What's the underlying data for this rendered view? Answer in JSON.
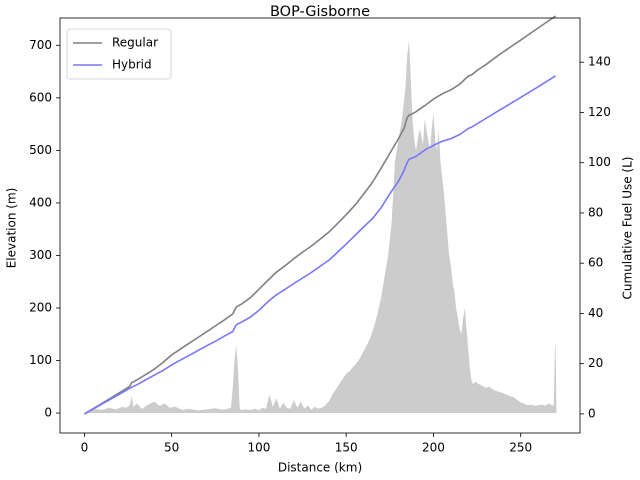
{
  "chart_data": {
    "type": "line",
    "title": "BOP-Gisborne",
    "xlabel": "Distance (km)",
    "ylabel_left": "Elevation (m)",
    "ylabel_right": "Cumulative Fuel Use (L)",
    "xlim": [
      -14,
      284
    ],
    "ylim_left": [
      -38,
      752
    ],
    "ylim_right": [
      -7.6,
      157.6
    ],
    "x_ticks": [
      0,
      50,
      100,
      150,
      200,
      250
    ],
    "y_ticks_left": [
      0,
      100,
      200,
      300,
      400,
      500,
      600,
      700
    ],
    "y_ticks_right": [
      0,
      20,
      40,
      60,
      80,
      100,
      120,
      140
    ],
    "legend_position": "upper-left",
    "elevation_color": "#cccccc",
    "elevation_profile": {
      "x": [
        0,
        3,
        6,
        10,
        14,
        18,
        22,
        24,
        26,
        27,
        28,
        30,
        33,
        36,
        40,
        43,
        46,
        49,
        52,
        56,
        60,
        65,
        70,
        75,
        80,
        84,
        85,
        86,
        87,
        88,
        89,
        90,
        92,
        95,
        98,
        100,
        102,
        104,
        106,
        108,
        110,
        112,
        114,
        116,
        118,
        120,
        122,
        124,
        126,
        128,
        130,
        132,
        134,
        136,
        138,
        140,
        142,
        144,
        146,
        148,
        150,
        152,
        154,
        156,
        158,
        160,
        162,
        164,
        166,
        168,
        170,
        172,
        174,
        176,
        177,
        178,
        180,
        182,
        184,
        185,
        186,
        187,
        188,
        189,
        190,
        191,
        192,
        193,
        194,
        195,
        196,
        197,
        198,
        199,
        200,
        201,
        202,
        203,
        204,
        205,
        206,
        207,
        208,
        209,
        210,
        211,
        212,
        213,
        214,
        215,
        216,
        217,
        218,
        219,
        220,
        221,
        222,
        223,
        224,
        226,
        228,
        230,
        232,
        234,
        236,
        238,
        240,
        242,
        244,
        246,
        248,
        250,
        252,
        254,
        256,
        258,
        260,
        262,
        264,
        266,
        268,
        269,
        269.6,
        270,
        270.5
      ],
      "y": [
        0,
        4,
        8,
        6,
        10,
        7,
        12,
        10,
        15,
        32,
        12,
        18,
        8,
        15,
        22,
        14,
        18,
        10,
        12,
        6,
        8,
        5,
        7,
        9,
        6,
        10,
        50,
        100,
        130,
        80,
        8,
        5,
        7,
        6,
        8,
        5,
        10,
        8,
        35,
        12,
        28,
        8,
        20,
        10,
        8,
        25,
        10,
        22,
        8,
        15,
        6,
        12,
        8,
        10,
        15,
        22,
        35,
        45,
        55,
        65,
        75,
        80,
        88,
        95,
        105,
        118,
        130,
        145,
        165,
        190,
        220,
        260,
        300,
        360,
        420,
        480,
        520,
        560,
        620,
        680,
        710,
        640,
        560,
        520,
        500,
        520,
        540,
        530,
        510,
        560,
        540,
        520,
        500,
        540,
        570,
        520,
        500,
        540,
        480,
        450,
        420,
        380,
        340,
        300,
        280,
        250,
        230,
        200,
        180,
        160,
        150,
        180,
        200,
        160,
        120,
        80,
        60,
        55,
        60,
        55,
        52,
        48,
        50,
        45,
        42,
        40,
        38,
        35,
        32,
        30,
        25,
        20,
        18,
        15,
        16,
        14,
        15,
        16,
        14,
        18,
        15,
        14,
        120,
        130,
        0
      ]
    },
    "series": [
      {
        "name": "Regular",
        "color": "#808080",
        "x": [
          0,
          10,
          20,
          26,
          27,
          30,
          35,
          40,
          45,
          50,
          55,
          60,
          65,
          70,
          75,
          80,
          85,
          87,
          90,
          95,
          100,
          105,
          110,
          115,
          120,
          125,
          130,
          135,
          140,
          145,
          150,
          155,
          160,
          165,
          170,
          175,
          180,
          183,
          185,
          186,
          187,
          190,
          195,
          200,
          205,
          210,
          215,
          220,
          222,
          225,
          230,
          235,
          240,
          250,
          260,
          270
        ],
        "y": [
          0,
          4.2,
          8.4,
          11,
          12.4,
          13.5,
          15.6,
          17.8,
          20.5,
          23.5,
          25.8,
          28.1,
          30.4,
          32.7,
          35,
          37.3,
          39.8,
          42.5,
          43.7,
          46.2,
          49.6,
          53.1,
          56.4,
          59,
          61.8,
          64.4,
          66.8,
          69.5,
          72.3,
          75.7,
          79.3,
          83.1,
          87.5,
          92.1,
          97.8,
          103.7,
          109.6,
          113.5,
          117.9,
          118.9,
          119.1,
          120.3,
          122.7,
          125.3,
          127.4,
          129,
          131.2,
          134.5,
          135,
          136.7,
          139,
          141.6,
          144.1,
          148.8,
          153.6,
          158.4
        ]
      },
      {
        "name": "Hybrid",
        "color": "#7777ff",
        "x": [
          0,
          10,
          20,
          27,
          30,
          35,
          40,
          45,
          50,
          55,
          60,
          65,
          70,
          75,
          80,
          85,
          87,
          90,
          95,
          100,
          105,
          110,
          115,
          120,
          125,
          130,
          135,
          140,
          145,
          150,
          155,
          160,
          165,
          170,
          175,
          180,
          183,
          185,
          186,
          190,
          195,
          200,
          205,
          210,
          215,
          220,
          222,
          225,
          230,
          235,
          240,
          250,
          260,
          270
        ],
        "y": [
          0,
          3.9,
          7.8,
          10.6,
          11.6,
          13.5,
          15.4,
          17.3,
          19.5,
          21.4,
          23.3,
          25.2,
          27.1,
          28.9,
          30.9,
          32.8,
          35.5,
          36.5,
          38.5,
          41.2,
          44.6,
          47.4,
          49.6,
          51.9,
          54.1,
          56.3,
          58.7,
          61.1,
          64.3,
          67.6,
          71,
          74.4,
          77.7,
          82.1,
          87.6,
          92.6,
          96.7,
          100.1,
          101.3,
          102.5,
          105,
          106.9,
          108.5,
          109.6,
          111.2,
          113.6,
          114.2,
          115.5,
          117.6,
          119.7,
          121.8,
          126,
          130.2,
          134.6
        ]
      }
    ]
  }
}
